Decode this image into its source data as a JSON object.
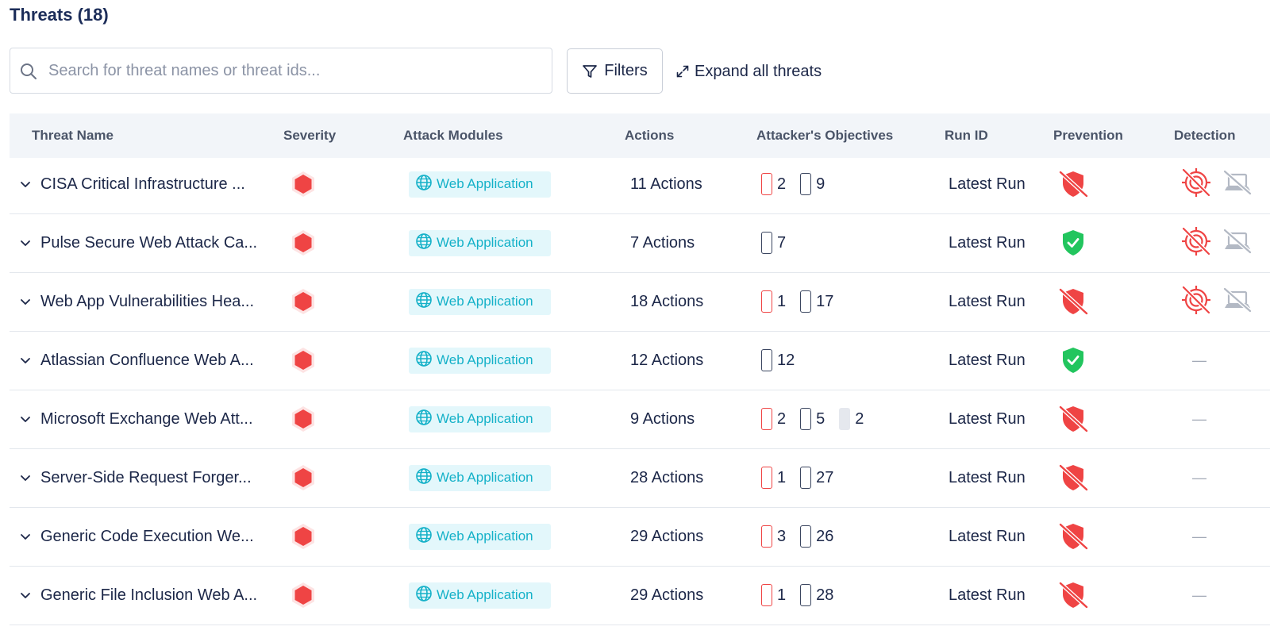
{
  "header": {
    "title": "Threats (18)"
  },
  "search": {
    "placeholder": "Search for threat names or threat ids..."
  },
  "toolbar": {
    "filters_label": "Filters",
    "expand_label": "Expand all threats"
  },
  "columns": [
    "Threat Name",
    "Severity",
    "Attack Modules",
    "Actions",
    "Attacker's Objectives",
    "Run ID",
    "Prevention",
    "Detection"
  ],
  "colors": {
    "danger": "#ef4444",
    "success": "#22c55e",
    "accent": "#14b1c8",
    "badge_bg": "#e3f7fb",
    "muted": "#a2a9b6"
  },
  "rows": [
    {
      "name": "CISA Critical Infrastructure ...",
      "severity": "high",
      "module": "Web Application",
      "actions": "11 Actions",
      "objectives": [
        {
          "type": "red",
          "count": "2"
        },
        {
          "type": "dark",
          "count": "9"
        }
      ],
      "run_id": "Latest Run",
      "prevention": "not-prevented",
      "detection": [
        "not-detected",
        "not-logged"
      ]
    },
    {
      "name": "Pulse Secure Web Attack Ca...",
      "severity": "high",
      "module": "Web Application",
      "actions": "7 Actions",
      "objectives": [
        {
          "type": "dark",
          "count": "7"
        }
      ],
      "run_id": "Latest Run",
      "prevention": "prevented",
      "detection": [
        "not-detected",
        "not-logged"
      ]
    },
    {
      "name": "Web App Vulnerabilities Hea...",
      "severity": "high",
      "module": "Web Application",
      "actions": "18 Actions",
      "objectives": [
        {
          "type": "red",
          "count": "1"
        },
        {
          "type": "dark",
          "count": "17"
        }
      ],
      "run_id": "Latest Run",
      "prevention": "not-prevented",
      "detection": [
        "not-detected",
        "not-logged"
      ]
    },
    {
      "name": "Atlassian Confluence Web A...",
      "severity": "high",
      "module": "Web Application",
      "actions": "12 Actions",
      "objectives": [
        {
          "type": "dark",
          "count": "12"
        }
      ],
      "run_id": "Latest Run",
      "prevention": "prevented",
      "detection": "—"
    },
    {
      "name": "Microsoft Exchange Web Att...",
      "severity": "high",
      "module": "Web Application",
      "actions": "9 Actions",
      "objectives": [
        {
          "type": "red",
          "count": "2"
        },
        {
          "type": "dark",
          "count": "5"
        },
        {
          "type": "gray",
          "count": "2"
        }
      ],
      "run_id": "Latest Run",
      "prevention": "not-prevented",
      "detection": "—"
    },
    {
      "name": "Server-Side Request Forger...",
      "severity": "high",
      "module": "Web Application",
      "actions": "28 Actions",
      "objectives": [
        {
          "type": "red",
          "count": "1"
        },
        {
          "type": "dark",
          "count": "27"
        }
      ],
      "run_id": "Latest Run",
      "prevention": "not-prevented",
      "detection": "—"
    },
    {
      "name": "Generic Code Execution We...",
      "severity": "high",
      "module": "Web Application",
      "actions": "29 Actions",
      "objectives": [
        {
          "type": "red",
          "count": "3"
        },
        {
          "type": "dark",
          "count": "26"
        }
      ],
      "run_id": "Latest Run",
      "prevention": "not-prevented",
      "detection": "—"
    },
    {
      "name": "Generic File Inclusion Web A...",
      "severity": "high",
      "module": "Web Application",
      "actions": "29 Actions",
      "objectives": [
        {
          "type": "red",
          "count": "1"
        },
        {
          "type": "dark",
          "count": "28"
        }
      ],
      "run_id": "Latest Run",
      "prevention": "not-prevented",
      "detection": "—"
    }
  ]
}
